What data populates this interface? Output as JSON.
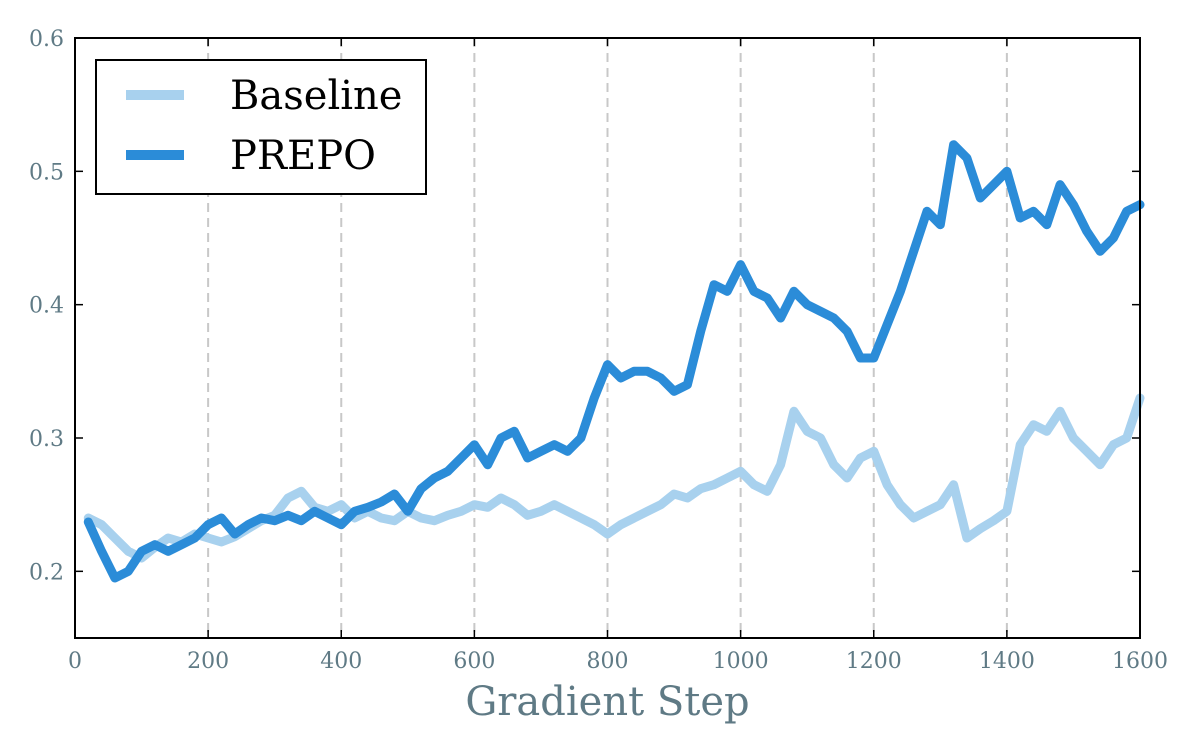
{
  "chart_data": {
    "type": "line",
    "title": "",
    "xlabel": "Gradient Step",
    "ylabel": "",
    "xlim": [
      0,
      1600
    ],
    "ylim": [
      0.15,
      0.6
    ],
    "xticks": [
      0,
      200,
      400,
      600,
      800,
      1000,
      1200,
      1400,
      1600
    ],
    "xtick_labels": [
      "0",
      "200",
      "400",
      "600",
      "800",
      "1000",
      "1200",
      "1400",
      "1600"
    ],
    "yticks": [
      0.2,
      0.3,
      0.4,
      0.5,
      0.6
    ],
    "ytick_labels": [
      "0.2",
      "0.3",
      "0.4",
      "0.5",
      "0.6"
    ],
    "grid": "vertical dashed at x ticks",
    "legend": {
      "placement": "top-left",
      "entries": [
        "Baseline",
        "PREPO"
      ]
    },
    "series": [
      {
        "name": "Baseline",
        "color": "#a8d1ee",
        "x": [
          20,
          40,
          60,
          80,
          100,
          120,
          140,
          160,
          180,
          200,
          220,
          240,
          260,
          280,
          300,
          320,
          340,
          360,
          380,
          400,
          420,
          440,
          460,
          480,
          500,
          520,
          540,
          560,
          580,
          600,
          620,
          640,
          660,
          680,
          700,
          720,
          740,
          760,
          780,
          800,
          820,
          840,
          860,
          880,
          900,
          920,
          940,
          960,
          980,
          1000,
          1020,
          1040,
          1060,
          1080,
          1100,
          1120,
          1140,
          1160,
          1180,
          1200,
          1220,
          1240,
          1260,
          1280,
          1300,
          1320,
          1340,
          1360,
          1380,
          1400,
          1420,
          1440,
          1460,
          1480,
          1500,
          1520,
          1540,
          1560,
          1580,
          1600
        ],
        "values": [
          0.24,
          0.235,
          0.225,
          0.215,
          0.21,
          0.218,
          0.225,
          0.222,
          0.228,
          0.225,
          0.222,
          0.226,
          0.232,
          0.238,
          0.242,
          0.255,
          0.26,
          0.248,
          0.245,
          0.25,
          0.24,
          0.245,
          0.24,
          0.238,
          0.245,
          0.24,
          0.238,
          0.242,
          0.245,
          0.25,
          0.248,
          0.255,
          0.25,
          0.242,
          0.245,
          0.25,
          0.245,
          0.24,
          0.235,
          0.228,
          0.235,
          0.24,
          0.245,
          0.25,
          0.258,
          0.255,
          0.262,
          0.265,
          0.27,
          0.275,
          0.265,
          0.26,
          0.28,
          0.32,
          0.305,
          0.3,
          0.28,
          0.27,
          0.285,
          0.29,
          0.265,
          0.25,
          0.24,
          0.245,
          0.25,
          0.265,
          0.225,
          0.232,
          0.238,
          0.245,
          0.295,
          0.31,
          0.305,
          0.32,
          0.3,
          0.29,
          0.28,
          0.295,
          0.3,
          0.33
        ]
      },
      {
        "name": "PREPO",
        "color": "#2b8cd8",
        "x": [
          20,
          40,
          60,
          80,
          100,
          120,
          140,
          160,
          180,
          200,
          220,
          240,
          260,
          280,
          300,
          320,
          340,
          360,
          380,
          400,
          420,
          440,
          460,
          480,
          500,
          520,
          540,
          560,
          580,
          600,
          620,
          640,
          660,
          680,
          700,
          720,
          740,
          760,
          780,
          800,
          820,
          840,
          860,
          880,
          900,
          920,
          940,
          960,
          980,
          1000,
          1020,
          1040,
          1060,
          1080,
          1100,
          1120,
          1140,
          1160,
          1180,
          1200,
          1220,
          1240,
          1260,
          1280,
          1300,
          1320,
          1340,
          1360,
          1380,
          1400,
          1420,
          1440,
          1460,
          1480,
          1500,
          1520,
          1540,
          1560,
          1580,
          1600
        ],
        "values": [
          0.237,
          0.215,
          0.195,
          0.2,
          0.215,
          0.22,
          0.215,
          0.22,
          0.225,
          0.235,
          0.24,
          0.228,
          0.235,
          0.24,
          0.238,
          0.242,
          0.238,
          0.245,
          0.24,
          0.235,
          0.245,
          0.248,
          0.252,
          0.258,
          0.245,
          0.262,
          0.27,
          0.275,
          0.285,
          0.295,
          0.28,
          0.3,
          0.305,
          0.285,
          0.29,
          0.295,
          0.29,
          0.3,
          0.33,
          0.355,
          0.345,
          0.35,
          0.35,
          0.345,
          0.335,
          0.34,
          0.38,
          0.415,
          0.41,
          0.43,
          0.41,
          0.405,
          0.39,
          0.41,
          0.4,
          0.395,
          0.39,
          0.38,
          0.36,
          0.36,
          0.385,
          0.41,
          0.44,
          0.47,
          0.46,
          0.52,
          0.51,
          0.48,
          0.49,
          0.5,
          0.465,
          0.47,
          0.46,
          0.49,
          0.475,
          0.455,
          0.44,
          0.45,
          0.47,
          0.475
        ]
      }
    ]
  }
}
